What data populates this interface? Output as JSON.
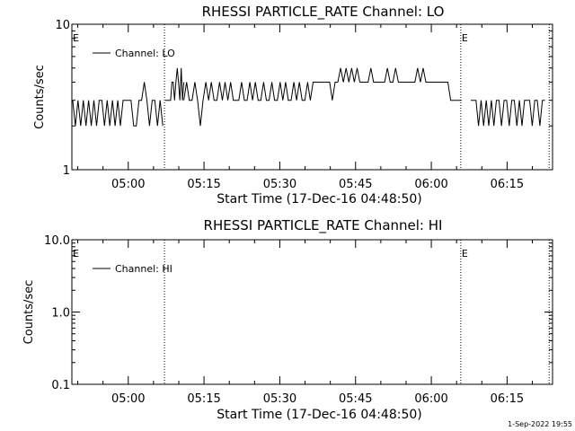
{
  "footer": {
    "timestamp": "1-Sep-2022 19:55"
  },
  "chart_data": [
    {
      "type": "line",
      "title": "RHESSI PARTICLE_RATE Channel: LO",
      "xlabel": "Start Time (17-Dec-16 04:48:50)",
      "ylabel": "Counts/sec",
      "yscale": "log",
      "ylim": [
        1,
        10
      ],
      "xlim": [
        "04:48:50",
        "06:24:00"
      ],
      "y_tick_labels": [
        "1",
        "10"
      ],
      "x_tick_labels": [
        "05:00",
        "05:15",
        "05:30",
        "05:45",
        "06:00",
        "06:15"
      ],
      "legend": "top-left",
      "grid": false,
      "event_marks": [
        {
          "time": "04:48:50",
          "label": "E"
        },
        {
          "time": "06:05:50",
          "label": "E"
        }
      ],
      "dotted_lines": [
        "05:07:10",
        "06:05:50",
        "06:23:20"
      ],
      "series": [
        {
          "name": "Channel: LO",
          "color": "#000000",
          "segments": [
            {
              "start": "04:49:00",
              "end": "05:06:50",
              "values": [
                3,
                2,
                3,
                2,
                3,
                2,
                3,
                2,
                3,
                2,
                3,
                3,
                2,
                3,
                2,
                3,
                2,
                3,
                2,
                3,
                3,
                3,
                3,
                2,
                2,
                3,
                3,
                4,
                3,
                2,
                3,
                3,
                2,
                3,
                2
              ]
            },
            {
              "start": "05:07:20",
              "end": "05:11:00",
              "values": [
                3,
                3,
                3,
                3,
                3,
                4,
                4,
                3,
                4,
                5,
                4,
                3,
                5,
                3,
                4
              ]
            },
            {
              "start": "05:11:00",
              "end": "06:06:00",
              "values": [
                3,
                4,
                3,
                3,
                4,
                3,
                2,
                3,
                4,
                3,
                4,
                3,
                3,
                4,
                3,
                4,
                3,
                4,
                3,
                3,
                3,
                4,
                3,
                3,
                4,
                3,
                4,
                3,
                3,
                4,
                3,
                3,
                4,
                3,
                3,
                4,
                3,
                4,
                3,
                3,
                4,
                3,
                4,
                3,
                3,
                4,
                3,
                4,
                4,
                4,
                4,
                4,
                4,
                4,
                3,
                4,
                4,
                5,
                4,
                5,
                4,
                5,
                4,
                5,
                4,
                4,
                4,
                4,
                5,
                4,
                4,
                4,
                4,
                4,
                5,
                4,
                4,
                5,
                4,
                4,
                4,
                4,
                4,
                4,
                4,
                5,
                4,
                5,
                4,
                4,
                4,
                4,
                4,
                4,
                4,
                4,
                4,
                3,
                3,
                3,
                3,
                3
              ]
            },
            {
              "start": "06:07:50",
              "end": "06:22:30",
              "values": [
                3,
                3,
                3,
                2,
                3,
                2,
                3,
                2,
                3,
                2,
                3,
                3,
                2,
                3,
                3,
                2,
                3,
                3,
                2,
                3,
                2,
                3,
                3,
                3,
                2,
                3,
                3,
                2,
                3,
                3
              ]
            }
          ]
        }
      ]
    },
    {
      "type": "line",
      "title": "RHESSI PARTICLE_RATE Channel: HI",
      "xlabel": "Start Time (17-Dec-16 04:48:50)",
      "ylabel": "Counts/sec",
      "yscale": "log",
      "ylim": [
        0.1,
        10
      ],
      "xlim": [
        "04:48:50",
        "06:24:00"
      ],
      "y_tick_labels": [
        "0.1",
        "1.0",
        "10.0"
      ],
      "x_tick_labels": [
        "05:00",
        "05:15",
        "05:30",
        "05:45",
        "06:00",
        "06:15"
      ],
      "legend": "top-left",
      "grid": false,
      "event_marks": [
        {
          "time": "04:48:50",
          "label": "E"
        },
        {
          "time": "06:05:50",
          "label": "E"
        }
      ],
      "dotted_lines": [
        "05:07:10",
        "06:05:50",
        "06:23:20"
      ],
      "series": [
        {
          "name": "Channel: HI",
          "color": "#000000",
          "segments": []
        }
      ]
    }
  ]
}
